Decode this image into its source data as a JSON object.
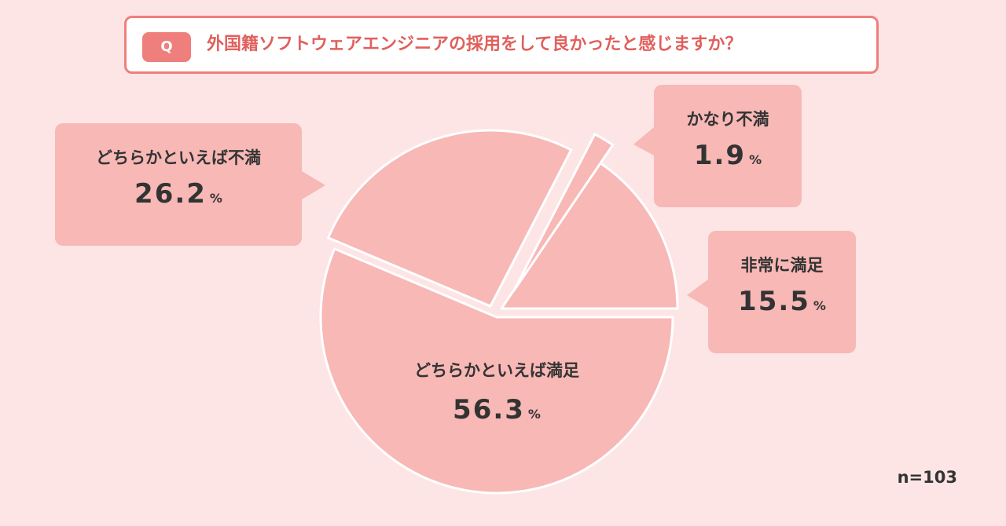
{
  "question": {
    "badge": "Q",
    "text": "外国籍ソフトウェアエンジニアの採用をして良かったと感じますか？"
  },
  "colors": {
    "background": "#fde5e5",
    "accent": "#ef7f7c",
    "slice": "#f7b8b6",
    "text": "#333333"
  },
  "chart_data": {
    "type": "pie",
    "slices": [
      {
        "label": "非常に満足",
        "value": 15.5,
        "display": "15.5",
        "unit": "%"
      },
      {
        "label": "どちらかといえば満足",
        "value": 56.3,
        "display": "56.3",
        "unit": "%"
      },
      {
        "label": "どちらかといえば不満",
        "value": 26.2,
        "display": "26.2",
        "unit": "%"
      },
      {
        "label": "かなり不満",
        "value": 1.9,
        "display": "1.9",
        "unit": "%"
      }
    ],
    "sample_size": "n=103"
  }
}
